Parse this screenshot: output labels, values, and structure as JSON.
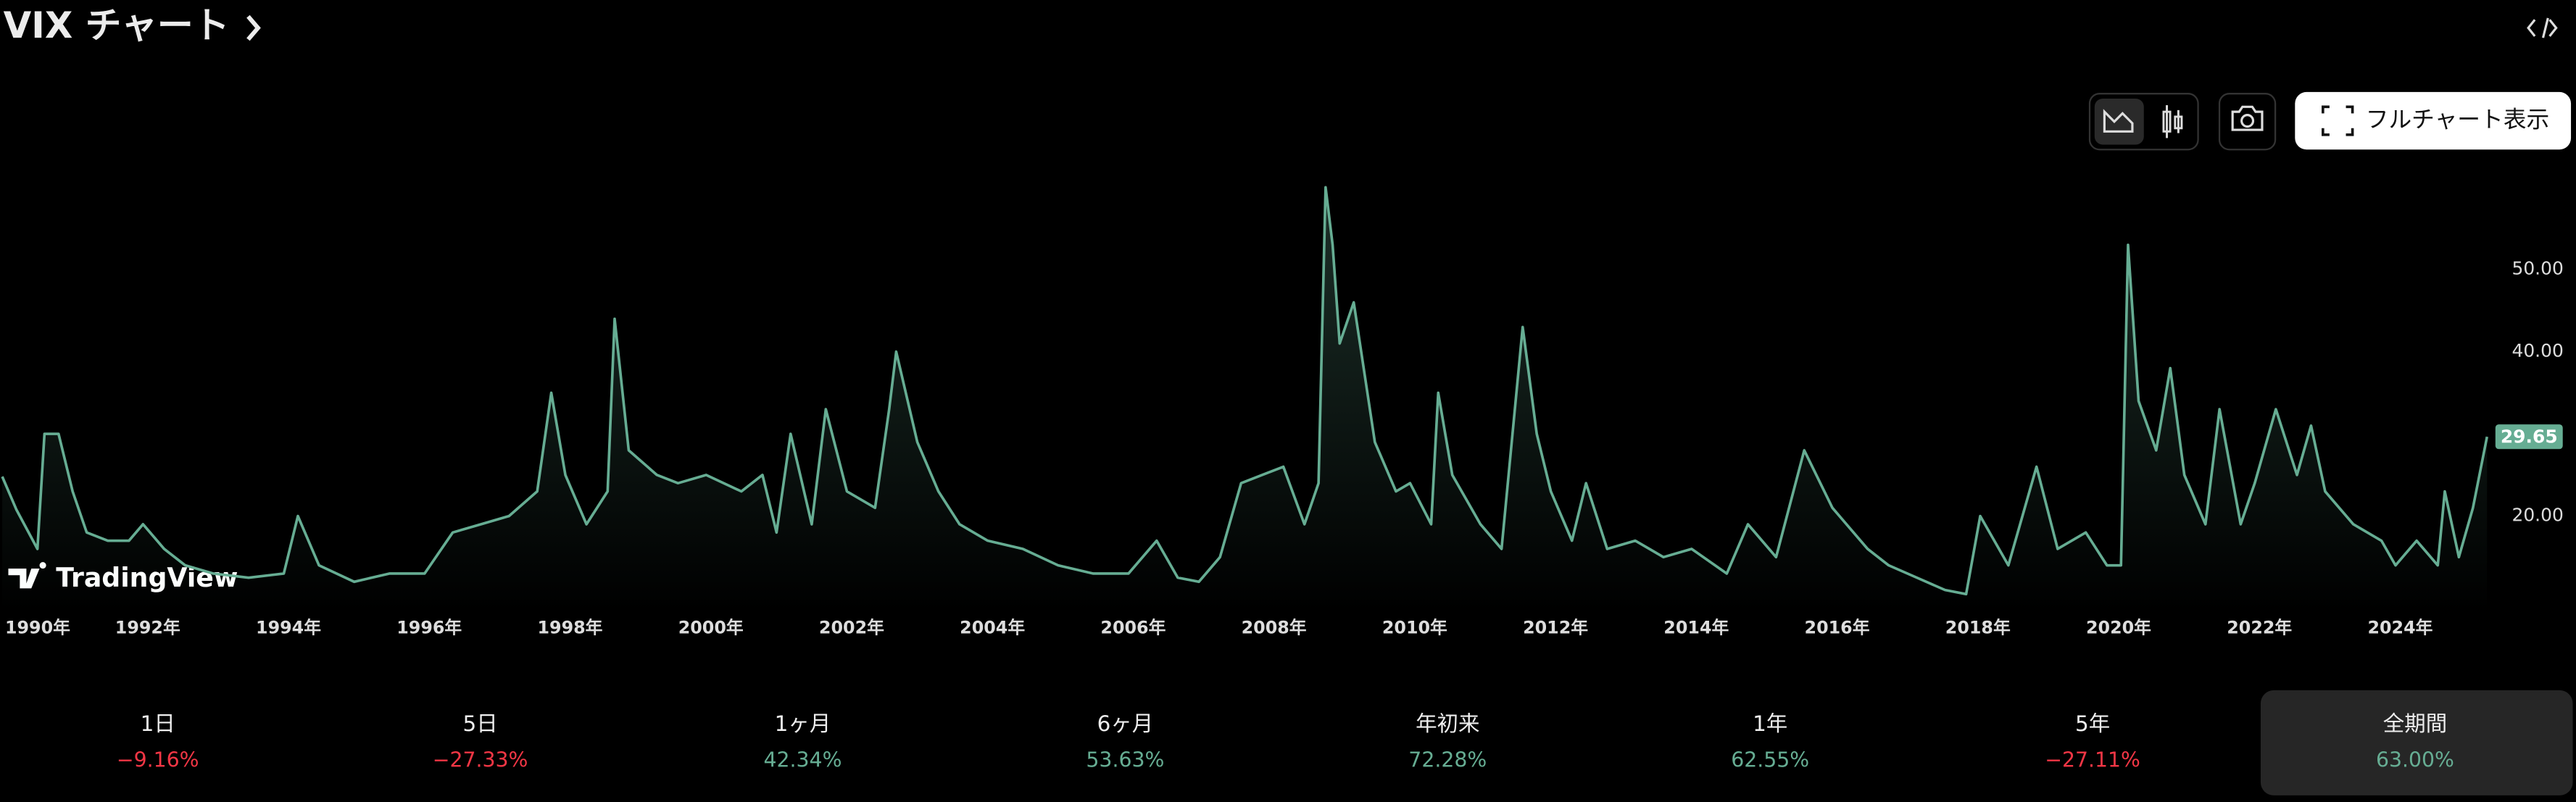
{
  "header": {
    "title": "VIX チャート"
  },
  "toolbar": {
    "full_chart": "フルチャート表示"
  },
  "watermark": "TradingView",
  "chart_data": {
    "type": "line",
    "color": "#66ad93",
    "x": [
      1990.0,
      1990.2,
      1990.5,
      1990.6,
      1990.8,
      1991.0,
      1991.2,
      1991.5,
      1991.8,
      1992.0,
      1992.3,
      1992.6,
      1993.0,
      1993.5,
      1994.0,
      1994.2,
      1994.5,
      1995.0,
      1995.5,
      1996.0,
      1996.4,
      1996.8,
      1997.2,
      1997.6,
      1997.8,
      1998.0,
      1998.3,
      1998.6,
      1998.7,
      1998.9,
      1999.3,
      1999.6,
      2000.0,
      2000.5,
      2000.8,
      2001.0,
      2001.2,
      2001.5,
      2001.7,
      2002.0,
      2002.4,
      2002.6,
      2002.7,
      2003.0,
      2003.3,
      2003.6,
      2004.0,
      2004.5,
      2005.0,
      2005.5,
      2006.0,
      2006.4,
      2006.7,
      2007.0,
      2007.3,
      2007.6,
      2007.9,
      2008.2,
      2008.5,
      2008.7,
      2008.8,
      2008.9,
      2009.0,
      2009.2,
      2009.5,
      2009.8,
      2010.0,
      2010.3,
      2010.4,
      2010.6,
      2011.0,
      2011.3,
      2011.6,
      2011.8,
      2012.0,
      2012.3,
      2012.5,
      2012.8,
      2013.2,
      2013.6,
      2014.0,
      2014.5,
      2014.8,
      2015.2,
      2015.6,
      2016.0,
      2016.5,
      2016.8,
      2017.2,
      2017.6,
      2017.9,
      2018.1,
      2018.5,
      2018.9,
      2019.2,
      2019.6,
      2019.9,
      2020.1,
      2020.2,
      2020.35,
      2020.6,
      2020.8,
      2021.0,
      2021.3,
      2021.5,
      2021.8,
      2022.0,
      2022.3,
      2022.6,
      2022.8,
      2023.0,
      2023.4,
      2023.8,
      2024.0,
      2024.3,
      2024.6,
      2024.7,
      2024.9,
      2025.1,
      2025.3
    ],
    "values": [
      24.8,
      20.8,
      16,
      30,
      30,
      23,
      18,
      17,
      17,
      19,
      16,
      14,
      13,
      12.5,
      13,
      20,
      14,
      12,
      13,
      13,
      18,
      19,
      20,
      23,
      35,
      25,
      19,
      23,
      44,
      28,
      25,
      24,
      25,
      23,
      25,
      18,
      30,
      19,
      33,
      23,
      21,
      33,
      40,
      29,
      23,
      19,
      17,
      16,
      14,
      13,
      13,
      17,
      12.5,
      12,
      15,
      24,
      25,
      26,
      19,
      24,
      60,
      53,
      41,
      46,
      29,
      23,
      24,
      19,
      35,
      25,
      19,
      16,
      43,
      30,
      23,
      17,
      24,
      16,
      17,
      15,
      16,
      13,
      19,
      15,
      28,
      21,
      16,
      14,
      12.5,
      11,
      10.5,
      20,
      14,
      26,
      16,
      18,
      14,
      14,
      53,
      34,
      28,
      38,
      25,
      19,
      33,
      19,
      24,
      33,
      25,
      31,
      23,
      19,
      17,
      14,
      17,
      14,
      23,
      15,
      21,
      29.65
    ],
    "last_value_label": "29.65",
    "xlim": [
      1990,
      2025.3
    ],
    "ylim": [
      10,
      60
    ],
    "xticks": [
      {
        "value": 1990,
        "label": "1990年"
      },
      {
        "value": 1992,
        "label": "1992年"
      },
      {
        "value": 1994,
        "label": "1994年"
      },
      {
        "value": 1996,
        "label": "1996年"
      },
      {
        "value": 1998,
        "label": "1998年"
      },
      {
        "value": 2000,
        "label": "2000年"
      },
      {
        "value": 2002,
        "label": "2002年"
      },
      {
        "value": 2004,
        "label": "2004年"
      },
      {
        "value": 2006,
        "label": "2006年"
      },
      {
        "value": 2008,
        "label": "2008年"
      },
      {
        "value": 2010,
        "label": "2010年"
      },
      {
        "value": 2012,
        "label": "2012年"
      },
      {
        "value": 2014,
        "label": "2014年"
      },
      {
        "value": 2016,
        "label": "2016年"
      },
      {
        "value": 2018,
        "label": "2018年"
      },
      {
        "value": 2020,
        "label": "2020年"
      },
      {
        "value": 2022,
        "label": "2022年"
      },
      {
        "value": 2024,
        "label": "2024年"
      }
    ],
    "yticks": [
      {
        "value": 20,
        "label": "20.00"
      },
      {
        "value": 40,
        "label": "40.00"
      },
      {
        "value": 50,
        "label": "50.00"
      }
    ]
  },
  "periods": [
    {
      "label": "1日",
      "change": "−9.16%",
      "color": "#f23645"
    },
    {
      "label": "5日",
      "change": "−27.33%",
      "color": "#f23645"
    },
    {
      "label": "1ヶ月",
      "change": "42.34%",
      "color": "#66ad93"
    },
    {
      "label": "6ヶ月",
      "change": "53.63%",
      "color": "#66ad93"
    },
    {
      "label": "年初来",
      "change": "72.28%",
      "color": "#66ad93"
    },
    {
      "label": "1年",
      "change": "62.55%",
      "color": "#66ad93"
    },
    {
      "label": "5年",
      "change": "−27.11%",
      "color": "#f23645"
    },
    {
      "label": "全期間",
      "change": "63.00%",
      "color": "#66ad93"
    }
  ]
}
